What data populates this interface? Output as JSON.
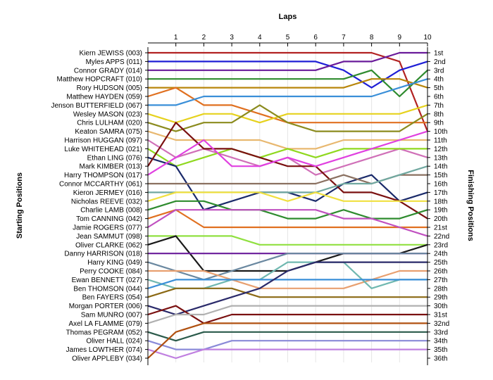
{
  "chart_data": {
    "type": "line",
    "title": "Laps",
    "ylabel_left": "Starting Positions",
    "ylabel_right": "Finishing Positions",
    "x": [
      0,
      1,
      2,
      3,
      4,
      5,
      6,
      7,
      8,
      9,
      10
    ],
    "x_ticks": [
      "1",
      "2",
      "3",
      "4",
      "5",
      "6",
      "7",
      "8",
      "9",
      "10"
    ],
    "start_labels": [
      "Kiern JEWISS (003)",
      "Myles APPS (011)",
      "Connor GRADY (014)",
      "Matthew HOPCRAFT (010)",
      "Rory HUDSON (005)",
      "Matthew HAYDEN (059)",
      "Jenson BUTTERFIELD (067)",
      "Wesley MASON (023)",
      "Chris LULHAM (020)",
      "Keaton SAMRA (075)",
      "Harrison HUGGAN (097)",
      "Luke WHITEHEAD (021)",
      "Ethan LING (076)",
      "Mark KIMBER (013)",
      "Harry THOMPSON (017)",
      "Connor MCCARTHY (061)",
      "Kieron JERMEY (016)",
      "Nicholas REEVE (032)",
      "Charlie LAMB (008)",
      "Tom CANNING (042)",
      "Jamie ROGERS (077)",
      "Jean SAMMUT (098)",
      "Oliver CLARKE (062)",
      "Danny HARRISON (018)",
      "Harry KING (049)",
      "Perry COOKE (084)",
      "Ewan BENNETT (027)",
      "Ben THOMSON (044)",
      "Ben FAYERS (054)",
      "Morgan PORTER (006)",
      "Sam MUNRO (007)",
      "Axel LA FLAMME (079)",
      "Thomas PEGRAM (052)",
      "Oliver HALL (024)",
      "James LOWTHER (074)",
      "Oliver APPLEBY (034)"
    ],
    "finish_labels": [
      "1st",
      "2nd",
      "3rd",
      "4th",
      "5th",
      "6th",
      "7th",
      "8th",
      "9th",
      "10th",
      "11th",
      "12th",
      "13th",
      "14th",
      "15th",
      "16th",
      "17th",
      "18th",
      "19th",
      "20th",
      "21st",
      "22nd",
      "23rd",
      "24th",
      "25th",
      "26th",
      "27th",
      "28th",
      "29th",
      "30th",
      "31st",
      "32nd",
      "33rd",
      "34th",
      "35th",
      "36th"
    ],
    "series": [
      {
        "color": "#b22222",
        "values": [
          1,
          1,
          1,
          1,
          1,
          1,
          1,
          1,
          1,
          2,
          10
        ]
      },
      {
        "color": "#1f1fd6",
        "values": [
          2,
          2,
          2,
          2,
          2,
          2,
          2,
          3,
          5,
          3,
          2
        ]
      },
      {
        "color": "#6a1b9a",
        "values": [
          3,
          3,
          3,
          3,
          3,
          3,
          3,
          2,
          2,
          1,
          1
        ]
      },
      {
        "color": "#2e8b2e",
        "values": [
          4,
          4,
          4,
          4,
          4,
          4,
          4,
          4,
          3,
          6,
          3
        ]
      },
      {
        "color": "#b8860b",
        "values": [
          5,
          5,
          5,
          5,
          5,
          5,
          5,
          5,
          4,
          4,
          5
        ]
      },
      {
        "color": "#e07020",
        "values": [
          6,
          5,
          7,
          7,
          8,
          9,
          9,
          9,
          9,
          9,
          9
        ]
      },
      {
        "color": "#3a8fd8",
        "values": [
          7,
          7,
          6,
          6,
          6,
          6,
          6,
          6,
          6,
          5,
          4
        ]
      },
      {
        "color": "#e6d21e",
        "values": [
          8,
          9,
          8,
          8,
          9,
          8,
          8,
          8,
          8,
          8,
          7
        ]
      },
      {
        "color": "#8b8b1e",
        "values": [
          9,
          10,
          9,
          9,
          7,
          9,
          10,
          10,
          10,
          10,
          8
        ]
      },
      {
        "color": "#e8b870",
        "values": [
          10,
          11,
          11,
          11,
          11,
          12,
          12,
          11,
          11,
          11,
          11
        ]
      },
      {
        "color": "#d070b8",
        "values": [
          11,
          13,
          12,
          13,
          14,
          13,
          15,
          14,
          13,
          12,
          13
        ]
      },
      {
        "color": "#8fd81e",
        "values": [
          12,
          14,
          13,
          12,
          13,
          12,
          13,
          12,
          12,
          12,
          12
        ]
      },
      {
        "color": "#1a2a6a",
        "values": [
          13,
          14,
          19,
          18,
          17,
          17,
          18,
          16,
          15,
          18,
          17
        ]
      },
      {
        "color": "#7a1010",
        "values": [
          14,
          9,
          12,
          12,
          13,
          14,
          14,
          17,
          17,
          18,
          20
        ]
      },
      {
        "color": "#e040e0",
        "values": [
          15,
          13,
          11,
          14,
          14,
          13,
          14,
          13,
          12,
          11,
          10
        ]
      },
      {
        "color": "#8a7060",
        "values": [
          16,
          16,
          16,
          16,
          16,
          16,
          16,
          15,
          16,
          15,
          15
        ]
      },
      {
        "color": "#70a8a0",
        "values": [
          17,
          17,
          17,
          17,
          17,
          17,
          17,
          16,
          16,
          15,
          14
        ]
      },
      {
        "color": "#f0e040",
        "values": [
          18,
          17,
          17,
          17,
          17,
          18,
          17,
          18,
          18,
          18,
          18
        ]
      },
      {
        "color": "#2e8b2e",
        "values": [
          19,
          18,
          18,
          19,
          19,
          20,
          20,
          19,
          20,
          20,
          19
        ]
      },
      {
        "color": "#e07020",
        "values": [
          20,
          19,
          21,
          21,
          21,
          21,
          21,
          21,
          21,
          21,
          21
        ]
      },
      {
        "color": "#c050c0",
        "values": [
          21,
          19,
          19,
          19,
          19,
          19,
          19,
          20,
          20,
          21,
          22
        ]
      },
      {
        "color": "#90e040",
        "values": [
          22,
          22,
          22,
          22,
          23,
          23,
          23,
          23,
          23,
          23,
          23
        ]
      },
      {
        "color": "#1a1a1a",
        "values": [
          23,
          22,
          26,
          26,
          26,
          26,
          25,
          24,
          24,
          24,
          23
        ]
      },
      {
        "color": "#6a1b9a",
        "values": [
          24,
          24,
          24,
          24,
          24,
          24,
          24,
          24,
          24,
          24,
          24
        ]
      },
      {
        "color": "#6a88a0",
        "values": [
          25,
          26,
          27,
          26,
          25,
          24,
          24,
          24,
          24,
          24,
          24
        ]
      },
      {
        "color": "#e8a070",
        "values": [
          26,
          26,
          26,
          27,
          28,
          28,
          28,
          28,
          27,
          26,
          26
        ]
      },
      {
        "color": "#70b8b0",
        "values": [
          27,
          28,
          28,
          27,
          27,
          25,
          25,
          25,
          28,
          27,
          27
        ]
      },
      {
        "color": "#3a8fd8",
        "values": [
          28,
          27,
          27,
          27,
          27,
          27,
          27,
          27,
          27,
          27,
          27
        ]
      },
      {
        "color": "#8b6914",
        "values": [
          29,
          28,
          28,
          28,
          29,
          29,
          29,
          29,
          29,
          29,
          29
        ]
      },
      {
        "color": "#2a2a6a",
        "values": [
          30,
          31,
          30,
          29,
          28,
          26,
          25,
          25,
          25,
          25,
          25
        ]
      },
      {
        "color": "#7a1010",
        "values": [
          31,
          30,
          32,
          31,
          31,
          31,
          31,
          31,
          31,
          31,
          31
        ]
      },
      {
        "color": "#b0b0b0",
        "values": [
          32,
          31,
          31,
          30,
          30,
          30,
          30,
          30,
          30,
          30,
          30
        ]
      },
      {
        "color": "#2a5a4a",
        "values": [
          33,
          34,
          33,
          33,
          33,
          33,
          33,
          33,
          33,
          33,
          33
        ]
      },
      {
        "color": "#8a8ad8",
        "values": [
          34,
          35,
          35,
          34,
          34,
          34,
          34,
          34,
          34,
          34,
          34
        ]
      },
      {
        "color": "#c080e0",
        "values": [
          35,
          36,
          35,
          35,
          35,
          35,
          35,
          35,
          35,
          35,
          35
        ]
      },
      {
        "color": "#b05010",
        "values": [
          36,
          33,
          32,
          32,
          32,
          32,
          32,
          32,
          32,
          32,
          32
        ]
      }
    ]
  }
}
